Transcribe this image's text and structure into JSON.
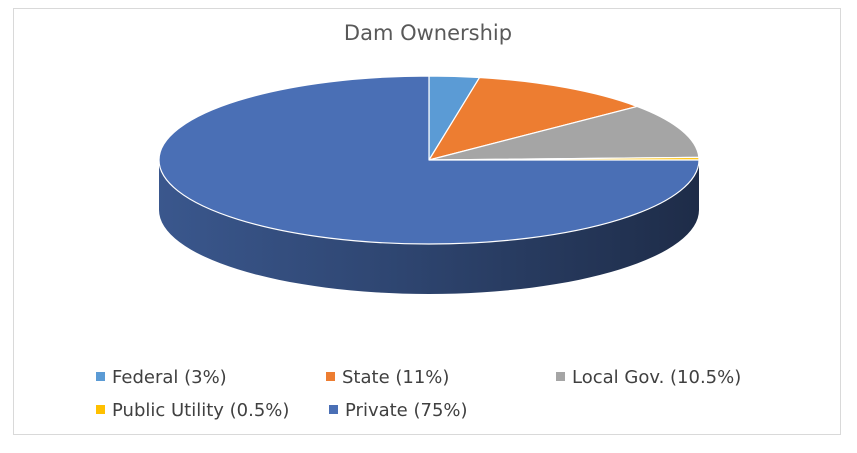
{
  "chart_data": {
    "type": "pie",
    "title": "Dam Ownership",
    "categories": [
      "Federal",
      "State",
      "Local Gov.",
      "Public Utility",
      "Private"
    ],
    "values": [
      3,
      11,
      10.5,
      0.5,
      75
    ],
    "colors": [
      "#5b9bd5",
      "#ed7d31",
      "#a5a5a5",
      "#ffc000",
      "#4a6fb5"
    ],
    "legend_labels": [
      "Federal (3%)",
      "State (11%)",
      "Local Gov. (10.5%)",
      "Public Utility (0.5%)",
      "Private (75%)"
    ],
    "legend_position": "bottom",
    "style": "3d"
  }
}
